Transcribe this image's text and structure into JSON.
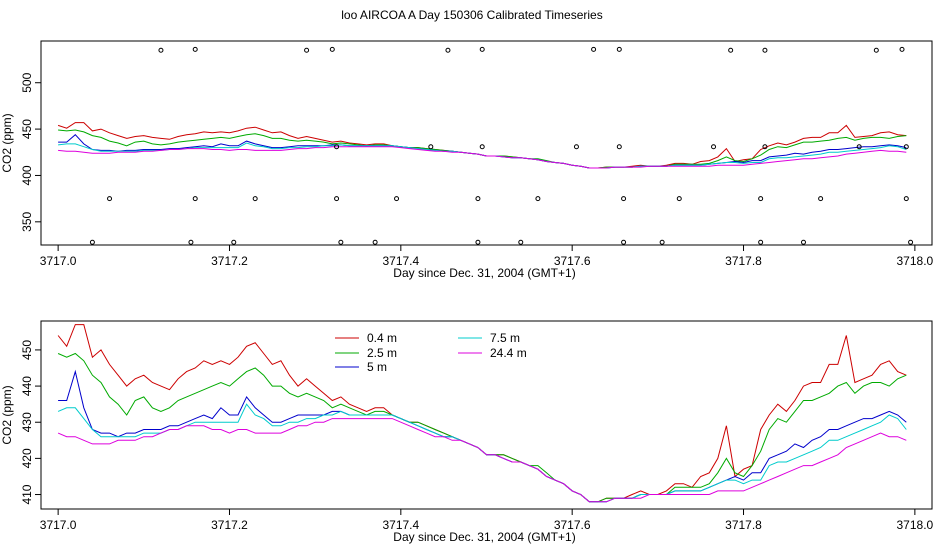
{
  "figure": {
    "title": "loo AIRCOA A  Day 150306  Calibrated Timeseries"
  },
  "chart_data": [
    {
      "type": "line",
      "panel": "top",
      "xlabel": "Day since Dec. 31, 2004 (GMT+1)",
      "ylabel": "CO2 (ppm)",
      "xlim": [
        3716.98,
        3718.02
      ],
      "ylim": [
        325,
        545
      ],
      "xticks": [
        3717.0,
        3717.2,
        3717.4,
        3717.6,
        3717.8,
        3718.0
      ],
      "xtick_labels": [
        "3717.0",
        "3717.2",
        "3717.4",
        "3717.6",
        "3717.8",
        "3718.0"
      ],
      "yticks": [
        350,
        400,
        450,
        500
      ],
      "ytick_labels": [
        "350",
        "400",
        "450",
        "500"
      ],
      "grid": false,
      "x": [
        3717.0,
        3717.01,
        3717.02,
        3717.03,
        3717.04,
        3717.05,
        3717.06,
        3717.07,
        3717.08,
        3717.09,
        3717.1,
        3717.11,
        3717.12,
        3717.13,
        3717.14,
        3717.15,
        3717.16,
        3717.17,
        3717.18,
        3717.19,
        3717.2,
        3717.21,
        3717.22,
        3717.23,
        3717.24,
        3717.25,
        3717.26,
        3717.27,
        3717.28,
        3717.29,
        3717.3,
        3717.31,
        3717.32,
        3717.33,
        3717.34,
        3717.35,
        3717.36,
        3717.37,
        3717.38,
        3717.39,
        3717.4,
        3717.41,
        3717.42,
        3717.43,
        3717.44,
        3717.45,
        3717.46,
        3717.47,
        3717.48,
        3717.49,
        3717.5,
        3717.51,
        3717.52,
        3717.53,
        3717.54,
        3717.55,
        3717.56,
        3717.57,
        3717.58,
        3717.59,
        3717.6,
        3717.61,
        3717.62,
        3717.63,
        3717.64,
        3717.65,
        3717.66,
        3717.67,
        3717.68,
        3717.69,
        3717.7,
        3717.71,
        3717.72,
        3717.73,
        3717.74,
        3717.75,
        3717.76,
        3717.77,
        3717.78,
        3717.79,
        3717.8,
        3717.81,
        3717.82,
        3717.83,
        3717.84,
        3717.85,
        3717.86,
        3717.87,
        3717.88,
        3717.89,
        3717.9,
        3717.91,
        3717.92,
        3717.93,
        3717.94,
        3717.95,
        3717.96,
        3717.97,
        3717.98,
        3717.99
      ],
      "series": [
        {
          "name": "0.4 m",
          "color": "#cc0000",
          "values": [
            454,
            451,
            457,
            457,
            448,
            450,
            446,
            443,
            440,
            442,
            443,
            441,
            440,
            439,
            442,
            444,
            445,
            447,
            446,
            447,
            446,
            448,
            451,
            452,
            449,
            446,
            447,
            443,
            440,
            442,
            440,
            438,
            436,
            437,
            435,
            434,
            433,
            434,
            434,
            432,
            431,
            430,
            430,
            429,
            428,
            427,
            426,
            425,
            424,
            423,
            421,
            421,
            421,
            420,
            419,
            418,
            417,
            415,
            414,
            413,
            411,
            410,
            408,
            408,
            409,
            409,
            409,
            410,
            411,
            410,
            410,
            411,
            413,
            413,
            412,
            415,
            416,
            420,
            429,
            415,
            417,
            418,
            428,
            432,
            435,
            433,
            436,
            440,
            441,
            441,
            446,
            446,
            454,
            441,
            442,
            443,
            446,
            447,
            444,
            443
          ]
        },
        {
          "name": "2.5 m",
          "color": "#00aa00",
          "values": [
            449,
            448,
            449,
            447,
            443,
            441,
            437,
            435,
            432,
            436,
            437,
            434,
            433,
            434,
            436,
            437,
            438,
            439,
            440,
            441,
            440,
            442,
            444,
            445,
            443,
            440,
            440,
            438,
            437,
            438,
            437,
            436,
            434,
            435,
            434,
            433,
            432,
            433,
            433,
            432,
            431,
            430,
            430,
            429,
            428,
            427,
            426,
            425,
            424,
            423,
            421,
            421,
            421,
            420,
            419,
            418,
            418,
            416,
            414,
            413,
            411,
            410,
            408,
            408,
            409,
            409,
            409,
            409,
            410,
            410,
            410,
            410,
            412,
            412,
            412,
            412,
            413,
            416,
            420,
            416,
            415,
            418,
            422,
            428,
            431,
            430,
            433,
            436,
            436,
            437,
            438,
            440,
            441,
            438,
            440,
            441,
            441,
            440,
            442,
            443
          ]
        },
        {
          "name": "5 m",
          "color": "#0000cc",
          "values": [
            436,
            436,
            444,
            434,
            428,
            427,
            427,
            426,
            427,
            427,
            428,
            428,
            428,
            429,
            429,
            430,
            431,
            432,
            431,
            434,
            432,
            432,
            437,
            434,
            432,
            430,
            430,
            431,
            432,
            432,
            432,
            432,
            433,
            433,
            432,
            432,
            432,
            432,
            432,
            432,
            431,
            430,
            429,
            428,
            427,
            426,
            426,
            425,
            424,
            423,
            421,
            421,
            420,
            419,
            419,
            418,
            417,
            415,
            414,
            413,
            411,
            410,
            408,
            408,
            408,
            409,
            409,
            409,
            410,
            410,
            410,
            410,
            411,
            411,
            411,
            411,
            412,
            413,
            414,
            415,
            414,
            416,
            416,
            420,
            421,
            422,
            424,
            423,
            425,
            426,
            428,
            428,
            429,
            430,
            431,
            431,
            432,
            433,
            432,
            430
          ]
        },
        {
          "name": "7.5 m",
          "color": "#00cccc",
          "values": [
            433,
            434,
            434,
            431,
            428,
            426,
            426,
            426,
            426,
            426,
            427,
            427,
            427,
            428,
            428,
            429,
            430,
            430,
            430,
            430,
            430,
            430,
            435,
            432,
            431,
            429,
            429,
            430,
            430,
            431,
            431,
            432,
            432,
            433,
            432,
            432,
            432,
            432,
            432,
            432,
            431,
            430,
            429,
            428,
            427,
            426,
            426,
            425,
            424,
            423,
            421,
            421,
            420,
            419,
            419,
            418,
            417,
            415,
            414,
            413,
            411,
            410,
            408,
            408,
            408,
            409,
            409,
            409,
            410,
            410,
            410,
            410,
            411,
            411,
            411,
            411,
            412,
            413,
            414,
            414,
            413,
            414,
            414,
            418,
            419,
            419,
            420,
            421,
            422,
            423,
            425,
            425,
            426,
            427,
            428,
            429,
            430,
            432,
            431,
            428
          ]
        },
        {
          "name": "24.4 m",
          "color": "#dd00dd",
          "values": [
            427,
            426,
            426,
            425,
            424,
            424,
            424,
            425,
            425,
            425,
            426,
            426,
            427,
            428,
            428,
            429,
            429,
            429,
            428,
            428,
            427,
            428,
            428,
            427,
            427,
            427,
            427,
            428,
            429,
            429,
            430,
            430,
            431,
            431,
            431,
            431,
            431,
            431,
            431,
            431,
            430,
            429,
            428,
            427,
            426,
            426,
            425,
            425,
            424,
            423,
            421,
            421,
            420,
            419,
            419,
            418,
            417,
            415,
            414,
            413,
            411,
            410,
            408,
            408,
            408,
            409,
            409,
            409,
            409,
            410,
            410,
            410,
            410,
            410,
            410,
            410,
            410,
            411,
            411,
            411,
            411,
            412,
            413,
            414,
            415,
            416,
            417,
            418,
            418,
            419,
            420,
            421,
            423,
            424,
            425,
            426,
            427,
            426,
            426,
            425
          ]
        }
      ],
      "outlier_points": {
        "x": [
          3717.04,
          3717.06,
          3717.12,
          3717.155,
          3717.16,
          3717.16,
          3717.205,
          3717.23,
          3717.29,
          3717.32,
          3717.325,
          3717.325,
          3717.33,
          3717.37,
          3717.395,
          3717.435,
          3717.455,
          3717.49,
          3717.49,
          3717.495,
          3717.495,
          3717.54,
          3717.56,
          3717.605,
          3717.625,
          3717.655,
          3717.655,
          3717.66,
          3717.66,
          3717.705,
          3717.725,
          3717.765,
          3717.785,
          3717.82,
          3717.82,
          3717.825,
          3717.825,
          3717.87,
          3717.89,
          3717.935,
          3717.955,
          3717.985,
          3717.99,
          3717.99,
          3717.995
        ],
        "y": [
          328,
          375,
          535,
          328,
          375,
          536,
          328,
          375,
          535,
          536,
          431,
          375,
          328,
          328,
          375,
          431,
          535,
          328,
          375,
          431,
          536,
          328,
          375,
          431,
          536,
          431,
          536,
          375,
          328,
          328,
          375,
          431,
          535,
          328,
          375,
          431,
          535,
          328,
          375,
          431,
          535,
          536,
          431,
          375,
          328
        ]
      }
    },
    {
      "type": "line",
      "panel": "bottom",
      "xlabel": "Day since Dec. 31, 2004 (GMT+1)",
      "ylabel": "CO2 (ppm)",
      "xlim": [
        3716.98,
        3718.02
      ],
      "ylim": [
        406,
        458
      ],
      "xticks": [
        3717.0,
        3717.2,
        3717.4,
        3717.6,
        3717.8,
        3718.0
      ],
      "xtick_labels": [
        "3717.0",
        "3717.2",
        "3717.4",
        "3717.6",
        "3717.8",
        "3718.0"
      ],
      "yticks": [
        410,
        420,
        430,
        440,
        450
      ],
      "ytick_labels": [
        "410",
        "420",
        "430",
        "440",
        "450"
      ],
      "grid": false,
      "legend": {
        "placement": "top-center",
        "entries": [
          {
            "label": "0.4 m",
            "color": "#cc0000"
          },
          {
            "label": "2.5 m",
            "color": "#00aa00"
          },
          {
            "label": "5 m",
            "color": "#0000cc"
          },
          {
            "label": "7.5 m",
            "color": "#00cccc"
          },
          {
            "label": "24.4 m",
            "color": "#dd00dd"
          }
        ]
      },
      "same_series_as": "top"
    }
  ]
}
